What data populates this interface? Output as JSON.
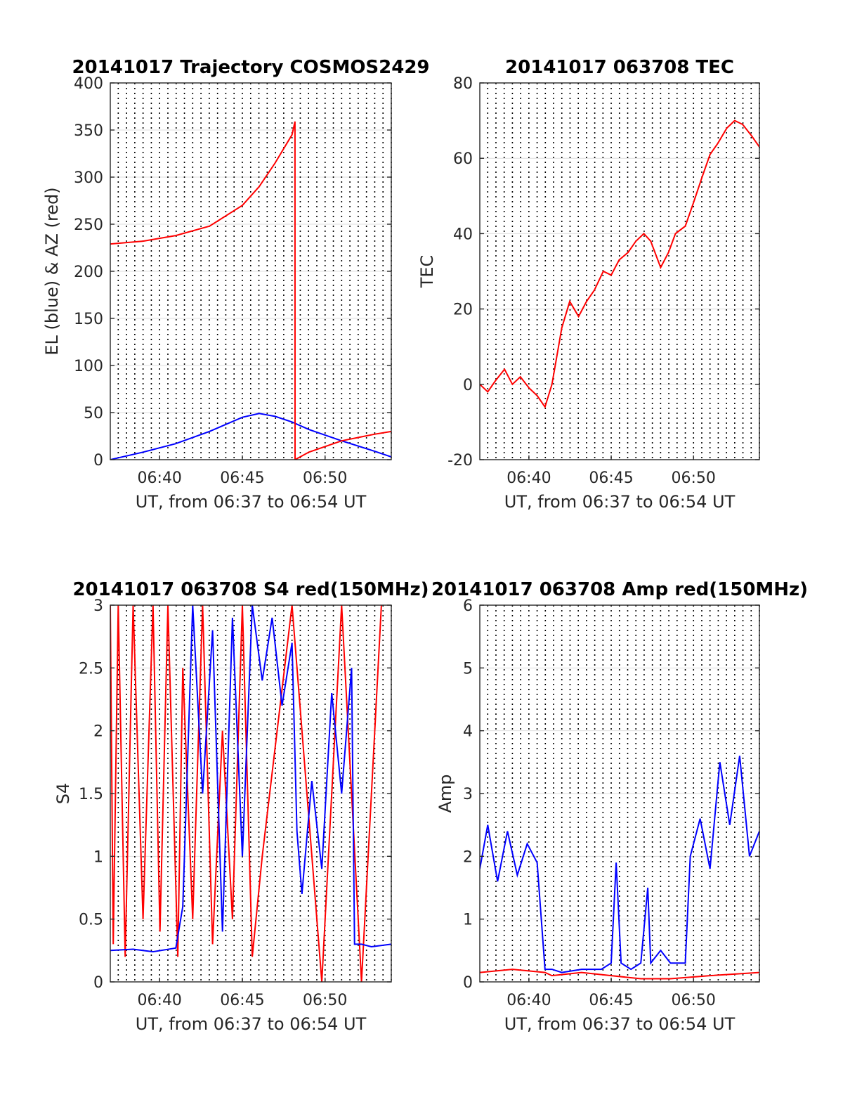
{
  "chart_data": [
    {
      "type": "line",
      "title": "20141017 Trajectory COSMOS2429",
      "xlabel": "UT, from 06:37 to 06:54 UT",
      "ylabel": "EL (blue) & AZ (red)",
      "xlim": [
        6.617,
        6.9
      ],
      "ylim": [
        0,
        400
      ],
      "yticks": [
        0,
        50,
        100,
        150,
        200,
        250,
        300,
        350,
        400
      ],
      "xticks": [
        6.6667,
        6.75,
        6.8333
      ],
      "xtick_labels": [
        "06:40",
        "06:45",
        "06:50"
      ],
      "vgrid": "dotted, every 30 s",
      "hgrid": true,
      "series": [
        {
          "color": "#0000ff",
          "x": [
            6.617,
            6.65,
            6.683,
            6.717,
            6.75,
            6.767,
            6.783,
            6.8,
            6.817,
            6.85,
            6.883,
            6.9
          ],
          "values": [
            0,
            8,
            17,
            30,
            45,
            49,
            46,
            40,
            32,
            20,
            9,
            3
          ]
        },
        {
          "color": "#ff0000",
          "x": [
            6.617,
            6.65,
            6.683,
            6.717,
            6.75,
            6.767,
            6.783,
            6.8,
            6.803,
            6.8031,
            6.817,
            6.85,
            6.883,
            6.9
          ],
          "values": [
            229,
            232,
            238,
            248,
            270,
            290,
            315,
            345,
            359,
            0,
            8,
            20,
            27,
            30
          ]
        }
      ]
    },
    {
      "type": "line",
      "title": "20141017 063708 TEC",
      "xlabel": "UT, from 06:37 to 06:54 UT",
      "ylabel": "TEC",
      "xlim": [
        6.617,
        6.9
      ],
      "ylim": [
        -20,
        80
      ],
      "yticks": [
        -20,
        0,
        20,
        40,
        60,
        80
      ],
      "xticks": [
        6.6667,
        6.75,
        6.8333
      ],
      "xtick_labels": [
        "06:40",
        "06:45",
        "06:50"
      ],
      "vgrid": "dotted, every 30 s",
      "hgrid": true,
      "series": [
        {
          "color": "#ff0000",
          "x": [
            6.617,
            6.625,
            6.633,
            6.642,
            6.65,
            6.658,
            6.667,
            6.675,
            6.683,
            6.69,
            6.7,
            6.708,
            6.717,
            6.725,
            6.733,
            6.742,
            6.75,
            6.758,
            6.767,
            6.775,
            6.783,
            6.79,
            6.8,
            6.808,
            6.815,
            6.825,
            6.833,
            6.842,
            6.85,
            6.858,
            6.867,
            6.875,
            6.883,
            6.892,
            6.9
          ],
          "values": [
            0,
            -2,
            1,
            4,
            0,
            2,
            -1,
            -3,
            -6,
            0,
            15,
            22,
            18,
            22,
            25,
            30,
            29,
            33,
            35,
            38,
            40,
            38,
            31,
            35,
            40,
            42,
            48,
            55,
            61,
            64,
            68,
            70,
            69,
            66,
            63
          ]
        }
      ]
    },
    {
      "type": "line",
      "title": "20141017 063708 S4 red(150MHz)",
      "xlabel": "UT, from 06:37 to 06:54 UT",
      "ylabel": "S4",
      "xlim": [
        6.617,
        6.9
      ],
      "ylim": [
        0,
        3
      ],
      "yticks": [
        0,
        0.5,
        1,
        1.5,
        2,
        2.5,
        3
      ],
      "yticklabels": [
        "0",
        "0.5",
        "1",
        "1.5",
        "2",
        "2.5",
        "3"
      ],
      "xticks": [
        6.6667,
        6.75,
        6.8333
      ],
      "xtick_labels": [
        "06:40",
        "06:45",
        "06:50"
      ],
      "vgrid": "dotted, every 30 s",
      "hgrid": true,
      "series": [
        {
          "color": "#ff0000",
          "x": [
            6.617,
            6.62,
            6.625,
            6.632,
            6.64,
            6.65,
            6.66,
            6.667,
            6.675,
            6.685,
            6.69,
            6.7,
            6.71,
            6.72,
            6.73,
            6.74,
            6.75,
            6.76,
            6.77,
            6.8,
            6.83,
            6.85,
            6.87,
            6.89
          ],
          "values": [
            3,
            0.3,
            3,
            0.2,
            3,
            0.5,
            3,
            0.4,
            3,
            0.2,
            2.5,
            0.5,
            3,
            0.3,
            2.0,
            0.5,
            3,
            0.2,
            1.0,
            3,
            0,
            3,
            0,
            3
          ]
        },
        {
          "color": "#0000ff",
          "x": [
            6.617,
            6.64,
            6.66,
            6.683,
            6.69,
            6.7,
            6.71,
            6.72,
            6.73,
            6.74,
            6.75,
            6.76,
            6.77,
            6.78,
            6.79,
            6.8,
            6.805,
            6.81,
            6.82,
            6.83,
            6.84,
            6.85,
            6.86,
            6.863,
            6.87,
            6.88,
            6.9
          ],
          "values": [
            0.25,
            0.26,
            0.24,
            0.27,
            0.6,
            3,
            1.5,
            2.8,
            0.4,
            2.9,
            1.0,
            3,
            2.4,
            2.9,
            2.2,
            2.7,
            1.2,
            0.7,
            1.6,
            0.9,
            2.3,
            1.5,
            2.5,
            0.3,
            0.3,
            0.28,
            0.3
          ]
        }
      ]
    },
    {
      "type": "line",
      "title": "20141017 063708 Amp red(150MHz)",
      "xlabel": "UT, from 06:37 to 06:54 UT",
      "ylabel": "Amp",
      "xlim": [
        6.617,
        6.9
      ],
      "ylim": [
        0,
        6
      ],
      "yticks": [
        0,
        1,
        2,
        3,
        4,
        5,
        6
      ],
      "xticks": [
        6.6667,
        6.75,
        6.8333
      ],
      "xtick_labels": [
        "06:40",
        "06:45",
        "06:50"
      ],
      "vgrid": "dotted, every 30 s",
      "hgrid": true,
      "series": [
        {
          "color": "#ff0000",
          "x": [
            6.617,
            6.65,
            6.683,
            6.69,
            6.72,
            6.75,
            6.78,
            6.81,
            6.85,
            6.9
          ],
          "values": [
            0.15,
            0.2,
            0.15,
            0.1,
            0.15,
            0.1,
            0.05,
            0.05,
            0.1,
            0.15
          ]
        },
        {
          "color": "#0000ff",
          "x": [
            6.617,
            6.625,
            6.635,
            6.645,
            6.655,
            6.665,
            6.675,
            6.683,
            6.69,
            6.7,
            6.72,
            6.74,
            6.75,
            6.755,
            6.76,
            6.77,
            6.78,
            6.787,
            6.79,
            6.8,
            6.81,
            6.825,
            6.83,
            6.84,
            6.85,
            6.86,
            6.87,
            6.88,
            6.89,
            6.9
          ],
          "values": [
            1.8,
            2.5,
            1.6,
            2.4,
            1.7,
            2.2,
            1.9,
            0.2,
            0.2,
            0.15,
            0.2,
            0.2,
            0.3,
            1.9,
            0.3,
            0.2,
            0.3,
            1.5,
            0.3,
            0.5,
            0.3,
            0.3,
            2.0,
            2.6,
            1.8,
            3.5,
            2.5,
            3.6,
            2.0,
            2.4
          ]
        }
      ]
    }
  ]
}
